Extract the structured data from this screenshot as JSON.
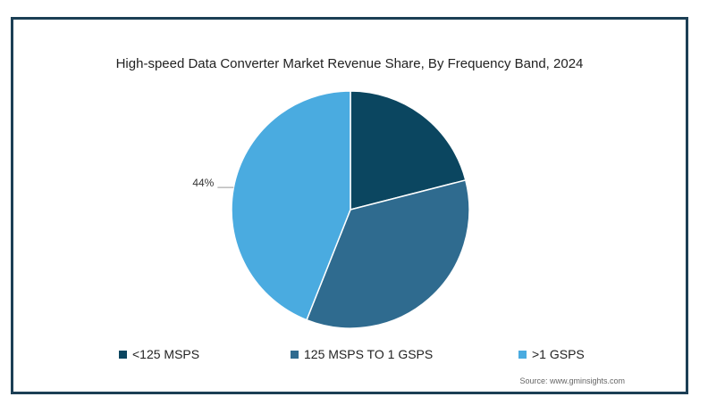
{
  "chart_data": {
    "type": "pie",
    "title": "High-speed Data Converter Market Revenue Share, By Frequency Band, 2024",
    "categories": [
      "<125 MSPS",
      "125 MSPS TO 1 GSPS",
      ">1 GSPS"
    ],
    "values": [
      21,
      35,
      44
    ],
    "colors": [
      "#0b4660",
      "#2f6b8f",
      "#4aabe0"
    ],
    "data_labels": [
      "",
      "",
      "44%"
    ],
    "legend_position": "bottom",
    "source": "Source: www.gminsights.com"
  }
}
